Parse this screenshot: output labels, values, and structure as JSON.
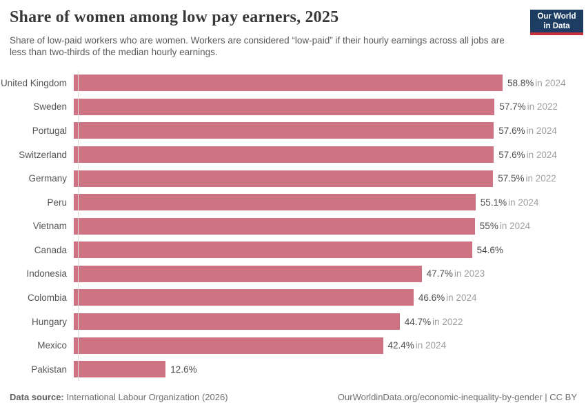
{
  "header": {
    "title": "Share of women among low pay earners, 2025",
    "subtitle": "Share of low-paid workers who are women. Workers are considered “low-paid” if their hourly earnings across all jobs are less than two-thirds of the median hourly earnings.",
    "logo": {
      "line1": "Our World",
      "line2": "in Data",
      "bg_color": "#1d3d63",
      "accent_color": "#c5303c"
    }
  },
  "chart_data": {
    "type": "bar",
    "orientation": "horizontal",
    "title": "Share of women among low pay earners, 2025",
    "unit": "%",
    "xlim": [
      0,
      69.5
    ],
    "grid": false,
    "legend": "none",
    "bar_color": "#ce7384",
    "categories": [
      "United Kingdom",
      "Sweden",
      "Portugal",
      "Switzerland",
      "Germany",
      "Peru",
      "Vietnam",
      "Canada",
      "Indonesia",
      "Colombia",
      "Hungary",
      "Mexico",
      "Pakistan"
    ],
    "values": [
      58.8,
      57.7,
      57.6,
      57.6,
      57.5,
      55.1,
      55,
      54.6,
      47.7,
      46.6,
      44.7,
      42.4,
      12.6
    ],
    "value_labels": [
      "58.8%",
      "57.7%",
      "57.6%",
      "57.6%",
      "57.5%",
      "55.1%",
      "55%",
      "54.6%",
      "47.7%",
      "46.6%",
      "44.7%",
      "42.4%",
      "12.6%"
    ],
    "time_labels": [
      "in 2024",
      "in 2022",
      "in 2024",
      "in 2024",
      "in 2022",
      "in 2024",
      "in 2024",
      "",
      "in 2023",
      "in 2024",
      "in 2022",
      "in 2024",
      ""
    ],
    "colors": {
      "bar": "#ce7384",
      "value_text": "#4e4e4e",
      "time_text": "#9e9e9e",
      "label_text": "#555555",
      "axis_line": "#dcdcdc"
    }
  },
  "footer": {
    "source_label": "Data source:",
    "source_text": "International Labour Organization (2026)",
    "attribution": "OurWorldinData.org/economic-inequality-by-gender | CC BY"
  }
}
